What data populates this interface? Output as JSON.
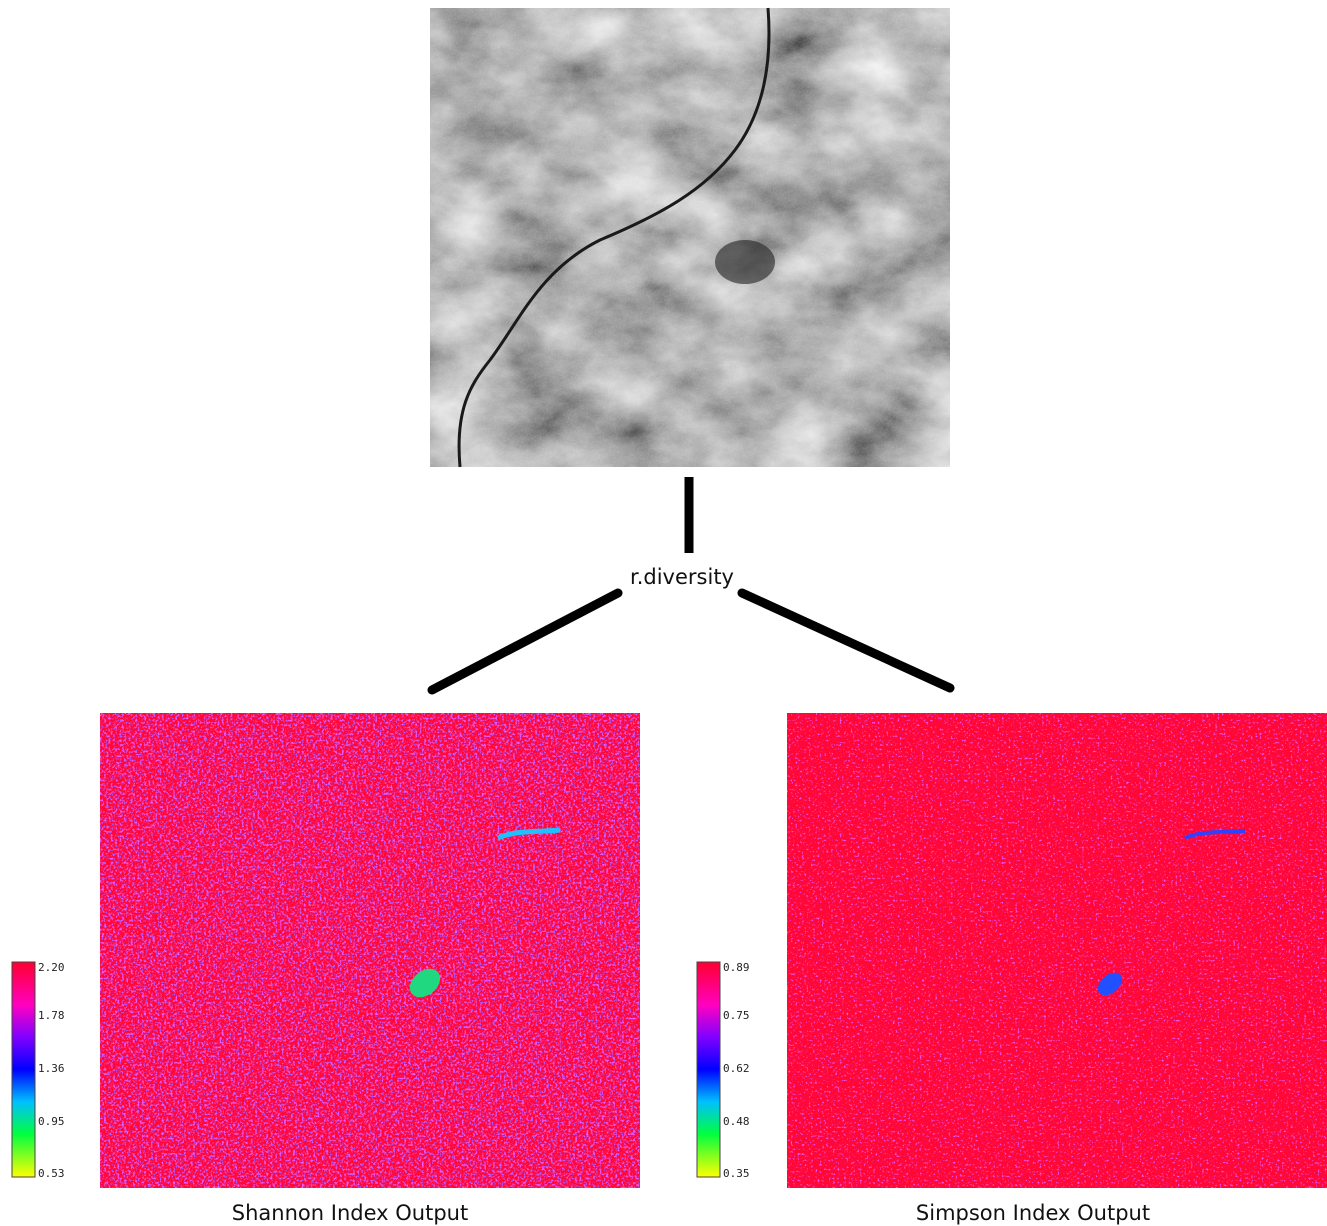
{
  "title": "r.diversity",
  "maps": [
    {
      "caption": "Shannon Index Output",
      "legend": [
        "2.20",
        "1.78",
        "1.36",
        "0.95",
        "0.53"
      ]
    },
    {
      "caption": "Simpson Index Output",
      "legend": [
        "0.89",
        "0.75",
        "0.62",
        "0.48",
        "0.35"
      ]
    }
  ]
}
